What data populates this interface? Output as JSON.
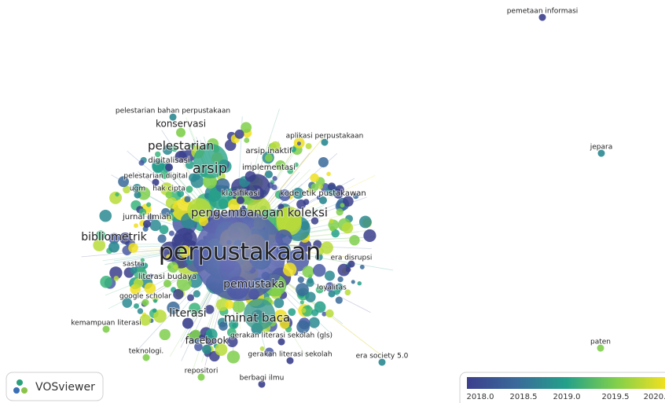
{
  "nodes": [
    {
      "label": "pemetaan informasi"
    },
    {
      "label": "pelestarian bahan perpustakaan"
    },
    {
      "label": "konservasi"
    },
    {
      "label": "pelestarian"
    },
    {
      "label": "aplikasi perpustakaan"
    },
    {
      "label": "arsip inaktif"
    },
    {
      "label": "digitalisasi"
    },
    {
      "label": "implementasi"
    },
    {
      "label": "arsip"
    },
    {
      "label": "pelestarian digital"
    },
    {
      "label": "ugm"
    },
    {
      "label": "hak cipta"
    },
    {
      "label": "klasifikasi"
    },
    {
      "label": "kode etik pustakawan"
    },
    {
      "label": "pengembangan koleksi"
    },
    {
      "label": "jurnal ilmiah"
    },
    {
      "label": "bibliometrik"
    },
    {
      "label": "perpustakaan"
    },
    {
      "label": "era disrupsi"
    },
    {
      "label": "sastra"
    },
    {
      "label": "literasi budaya"
    },
    {
      "label": "pemustaka"
    },
    {
      "label": "loyalitas"
    },
    {
      "label": "google scholar"
    },
    {
      "label": "literasi"
    },
    {
      "label": "minat baca"
    },
    {
      "label": "kemampuan literasi"
    },
    {
      "label": "gerakan literasi sekolah (gls)"
    },
    {
      "label": "facebook"
    },
    {
      "label": "teknologi."
    },
    {
      "label": "gerakan literasi sekolah"
    },
    {
      "label": "era society 5.0"
    },
    {
      "label": "repositori"
    },
    {
      "label": "berbagi ilmu"
    },
    {
      "label": "jepara"
    },
    {
      "label": "paten"
    }
  ],
  "logo": {
    "text": "VOSviewer"
  },
  "color_bar": {
    "ticks": [
      "2018.0",
      "2018.5",
      "2019.0",
      "2019.5",
      "2020."
    ]
  }
}
